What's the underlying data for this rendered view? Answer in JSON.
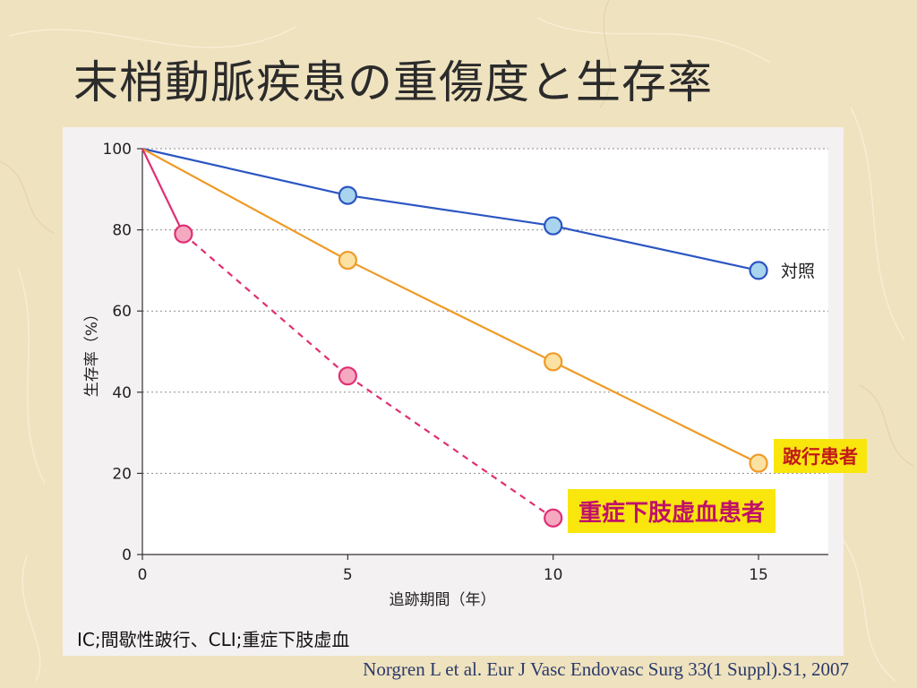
{
  "slide": {
    "title": "末梢動脈疾患の重傷度と生存率",
    "footnote": "IC;間歇性跛行、CLI;重症下肢虚血",
    "citation": "Norgren L et al. Eur J Vasc Endovasc Surg 33(1 Suppl).S1, 2007"
  },
  "colors": {
    "background": "#efe2bf",
    "panel": "#f4f1f3",
    "control": "#2b55c2",
    "claudication": "#ef9a26",
    "cli": "#df2f73",
    "label_bg": "#f8e60c"
  },
  "chart_data": {
    "type": "line",
    "xlabel": "追跡期間（年）",
    "ylabel": "生存率（%）",
    "xlim": [
      0,
      16.7
    ],
    "ylim": [
      0,
      100
    ],
    "x_ticks": [
      0,
      5,
      10,
      15
    ],
    "y_ticks": [
      0,
      20,
      40,
      60,
      80,
      100
    ],
    "grid": "horizontal dotted",
    "series": [
      {
        "name": "対照",
        "color": "#2b55c2",
        "marker_fill": "#a9d4ee",
        "line_style": "solid",
        "points": [
          [
            0,
            100
          ],
          [
            5,
            88.5
          ],
          [
            10,
            81
          ],
          [
            15,
            70
          ]
        ],
        "markers_from_index": 1
      },
      {
        "name": "跛行患者",
        "color": "#ef9a26",
        "marker_fill": "#fbe2a3",
        "line_style": "solid",
        "points": [
          [
            0,
            100
          ],
          [
            5,
            72.5
          ],
          [
            10,
            47.5
          ],
          [
            15,
            22.5
          ]
        ],
        "markers_from_index": 1
      },
      {
        "name": "重症下肢虚血患者",
        "color": "#df2f73",
        "marker_fill": "#f5a9c1",
        "line_style": "dashed",
        "points": [
          [
            0,
            100
          ],
          [
            1,
            79
          ],
          [
            5,
            44
          ],
          [
            10,
            9
          ]
        ],
        "markers_from_index": 1,
        "first_segment_style": "solid"
      }
    ]
  }
}
